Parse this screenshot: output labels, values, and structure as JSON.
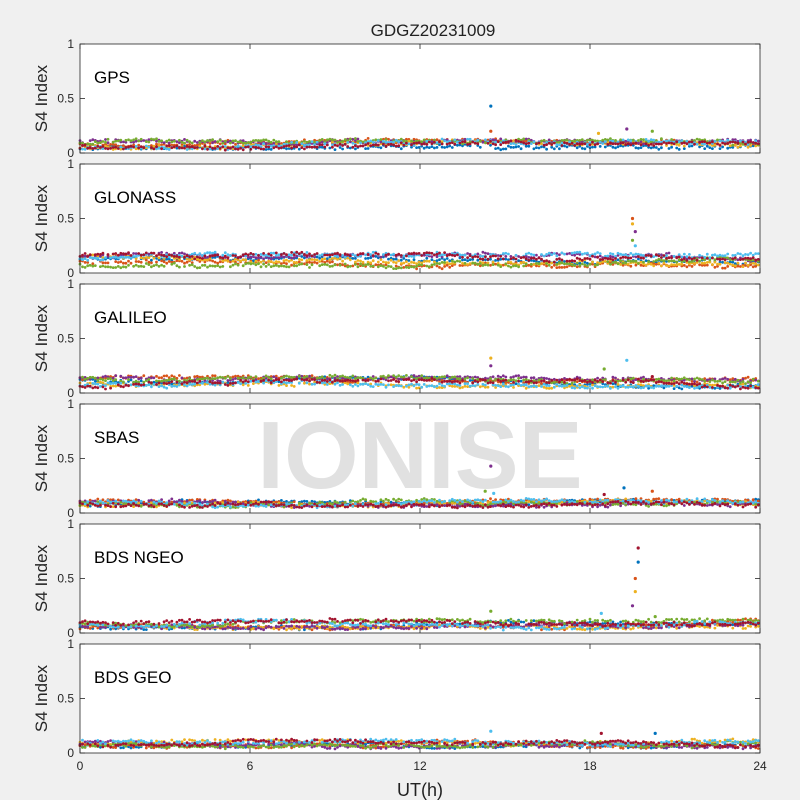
{
  "figure": {
    "title": "GDGZ20231009",
    "xlabel": "UT(h)",
    "ylabel": "S4 Index",
    "watermark": "IONISE",
    "background": "#f0f0f0",
    "axes_background": "#ffffff",
    "series_colors": [
      "#0072bd",
      "#d95319",
      "#edb120",
      "#7e2f8e",
      "#77ac30",
      "#4dbeee",
      "#a2142f"
    ]
  },
  "chart_data": [
    {
      "type": "scatter",
      "panel": "GPS",
      "xlim": [
        0,
        24
      ],
      "ylim": [
        0,
        1
      ],
      "xticks": [
        0,
        6,
        12,
        18,
        24
      ],
      "yticks": [
        0,
        0.5,
        1
      ],
      "xlabel": "",
      "ylabel": "S4 Index",
      "grid": false,
      "baseline_range": [
        0.04,
        0.12
      ],
      "spikes": [
        {
          "x": 14.5,
          "y": 0.43
        },
        {
          "x": 14.5,
          "y": 0.2
        },
        {
          "x": 18.3,
          "y": 0.18
        },
        {
          "x": 19.3,
          "y": 0.22
        },
        {
          "x": 20.2,
          "y": 0.2
        }
      ]
    },
    {
      "type": "scatter",
      "panel": "GLONASS",
      "xlim": [
        0,
        24
      ],
      "ylim": [
        0,
        1
      ],
      "xticks": [
        0,
        6,
        12,
        18,
        24
      ],
      "yticks": [
        0,
        0.5,
        1
      ],
      "xlabel": "",
      "ylabel": "S4 Index",
      "grid": false,
      "baseline_range": [
        0.05,
        0.18
      ],
      "spikes": [
        {
          "x": 19.5,
          "y": 0.5
        },
        {
          "x": 19.5,
          "y": 0.45
        },
        {
          "x": 19.6,
          "y": 0.38
        },
        {
          "x": 19.5,
          "y": 0.3
        },
        {
          "x": 19.6,
          "y": 0.25
        }
      ]
    },
    {
      "type": "scatter",
      "panel": "GALILEO",
      "xlim": [
        0,
        24
      ],
      "ylim": [
        0,
        1
      ],
      "xticks": [
        0,
        6,
        12,
        18,
        24
      ],
      "yticks": [
        0,
        0.5,
        1
      ],
      "xlabel": "",
      "ylabel": "S4 Index",
      "grid": false,
      "baseline_range": [
        0.05,
        0.15
      ],
      "spikes": [
        {
          "x": 14.5,
          "y": 0.32
        },
        {
          "x": 14.5,
          "y": 0.25
        },
        {
          "x": 18.5,
          "y": 0.22
        },
        {
          "x": 19.3,
          "y": 0.3
        },
        {
          "x": 20.2,
          "y": 0.15
        }
      ]
    },
    {
      "type": "scatter",
      "panel": "SBAS",
      "xlim": [
        0,
        24
      ],
      "ylim": [
        0,
        1
      ],
      "xticks": [
        0,
        6,
        12,
        18,
        24
      ],
      "yticks": [
        0,
        0.5,
        1
      ],
      "xlabel": "",
      "ylabel": "S4 Index",
      "grid": false,
      "baseline_range": [
        0.06,
        0.12
      ],
      "spikes": [
        {
          "x": 14.5,
          "y": 0.43
        },
        {
          "x": 14.3,
          "y": 0.2
        },
        {
          "x": 14.6,
          "y": 0.18
        },
        {
          "x": 18.5,
          "y": 0.17
        },
        {
          "x": 19.2,
          "y": 0.23
        },
        {
          "x": 20.2,
          "y": 0.2
        }
      ]
    },
    {
      "type": "scatter",
      "panel": "BDS NGEO",
      "xlim": [
        0,
        24
      ],
      "ylim": [
        0,
        1
      ],
      "xticks": [
        0,
        6,
        12,
        18,
        24
      ],
      "yticks": [
        0,
        0.5,
        1
      ],
      "xlabel": "",
      "ylabel": "S4 Index",
      "grid": false,
      "baseline_range": [
        0.04,
        0.12
      ],
      "spikes": [
        {
          "x": 14.5,
          "y": 0.2
        },
        {
          "x": 18.4,
          "y": 0.18
        },
        {
          "x": 19.7,
          "y": 0.78
        },
        {
          "x": 19.7,
          "y": 0.65
        },
        {
          "x": 19.6,
          "y": 0.5
        },
        {
          "x": 19.6,
          "y": 0.38
        },
        {
          "x": 19.5,
          "y": 0.25
        },
        {
          "x": 20.3,
          "y": 0.15
        }
      ]
    },
    {
      "type": "scatter",
      "panel": "BDS GEO",
      "xlim": [
        0,
        24
      ],
      "ylim": [
        0,
        1
      ],
      "xticks": [
        0,
        6,
        12,
        18,
        24
      ],
      "yticks": [
        0,
        0.5,
        1
      ],
      "xlabel": "UT(h)",
      "ylabel": "S4 Index",
      "grid": false,
      "baseline_range": [
        0.05,
        0.12
      ],
      "spikes": [
        {
          "x": 14.5,
          "y": 0.2
        },
        {
          "x": 18.4,
          "y": 0.18
        },
        {
          "x": 20.3,
          "y": 0.18
        }
      ]
    }
  ]
}
